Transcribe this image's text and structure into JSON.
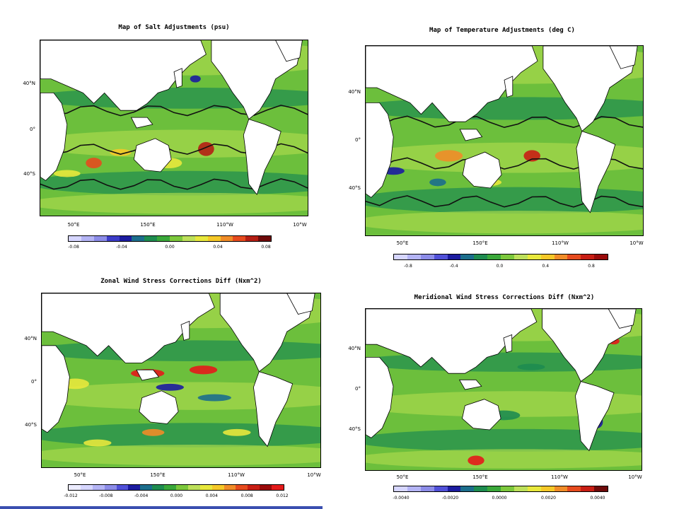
{
  "panels": [
    {
      "id": "salt",
      "title": "Map of Salt Adjustments (psu)",
      "lat_labels": [
        "40°N",
        "0°",
        "40°S"
      ],
      "lon_labels": [
        "50°E",
        "150°E",
        "110°W",
        "10°W"
      ],
      "colorbar": {
        "colors": [
          "#d6d6ff",
          "#b4b4f5",
          "#8c8ce8",
          "#3c3cc8",
          "#1c1ca0",
          "#1c6e8c",
          "#1e8c50",
          "#3aa83a",
          "#7cc83c",
          "#bde05a",
          "#e8e83c",
          "#f5c828",
          "#f08c28",
          "#e64b1e",
          "#b41e14",
          "#6e0a0a"
        ],
        "labels": [
          "-0.08",
          "-0.04",
          "0.00",
          "0.04",
          "0.08"
        ]
      }
    },
    {
      "id": "temperature",
      "title": "Map of Temperature Adjustments (deg C)",
      "lat_labels": [
        "40°N",
        "0°",
        "40°S"
      ],
      "lon_labels": [
        "50°E",
        "150°E",
        "110°W",
        "10°W"
      ],
      "colorbar": {
        "colors": [
          "#d6d6ff",
          "#b4b4f5",
          "#8c8ce8",
          "#5050d8",
          "#1c1ca0",
          "#1c6e8c",
          "#1e8c50",
          "#3aa83a",
          "#7cc83c",
          "#bde05a",
          "#e8e83c",
          "#f5c828",
          "#f08c28",
          "#e64b1e",
          "#c81e14",
          "#9a0a0a"
        ],
        "labels": [
          "-0.8",
          "-0.4",
          "0.0",
          "0.4",
          "0.8"
        ]
      }
    },
    {
      "id": "zonal",
      "title": "Zonal Wind Stress Corrections Diff (Nxm^2)",
      "lat_labels": [
        "40°N",
        "0°",
        "40°S"
      ],
      "lon_labels": [
        "50°E",
        "150°E",
        "110°W",
        "10°W"
      ],
      "colorbar": {
        "colors": [
          "#ececff",
          "#d6d6ff",
          "#b4b4f5",
          "#8c8ce8",
          "#5050d8",
          "#1c1ca0",
          "#1c6e8c",
          "#1e8c50",
          "#3aa83a",
          "#7cc83c",
          "#bde05a",
          "#e8e83c",
          "#f5c828",
          "#f08c28",
          "#e64b1e",
          "#c81e14",
          "#9a0a0a",
          "#e41a1a"
        ],
        "labels": [
          "-0.012",
          "-0.008",
          "-0.004",
          "0.000",
          "0.004",
          "0.008",
          "0.012"
        ]
      }
    },
    {
      "id": "meridional",
      "title": "Meridional Wind Stress Corrections Diff (Nxm^2)",
      "lat_labels": [
        "40°N",
        "0°",
        "40°S"
      ],
      "lon_labels": [
        "50°E",
        "150°E",
        "110°W",
        "10°W"
      ],
      "colorbar": {
        "colors": [
          "#d6d6ff",
          "#b4b4f5",
          "#8c8ce8",
          "#5050d8",
          "#1c1ca0",
          "#1c6e8c",
          "#1e8c50",
          "#3aa83a",
          "#7cc83c",
          "#bde05a",
          "#e8e83c",
          "#f5c828",
          "#f08c28",
          "#e64b1e",
          "#c81e14",
          "#6e0a0a"
        ],
        "labels": [
          "-0.0040",
          "-0.0020",
          "0.0000",
          "0.0020",
          "0.0040"
        ]
      }
    }
  ],
  "colors": {
    "land": "#ffffff",
    "ocean_base": "#6cbf3c",
    "ocean_light": "#a8d84c",
    "ocean_dark": "#1e8c50",
    "contour": "#111111",
    "accent_bar": "#3a4fb0"
  }
}
